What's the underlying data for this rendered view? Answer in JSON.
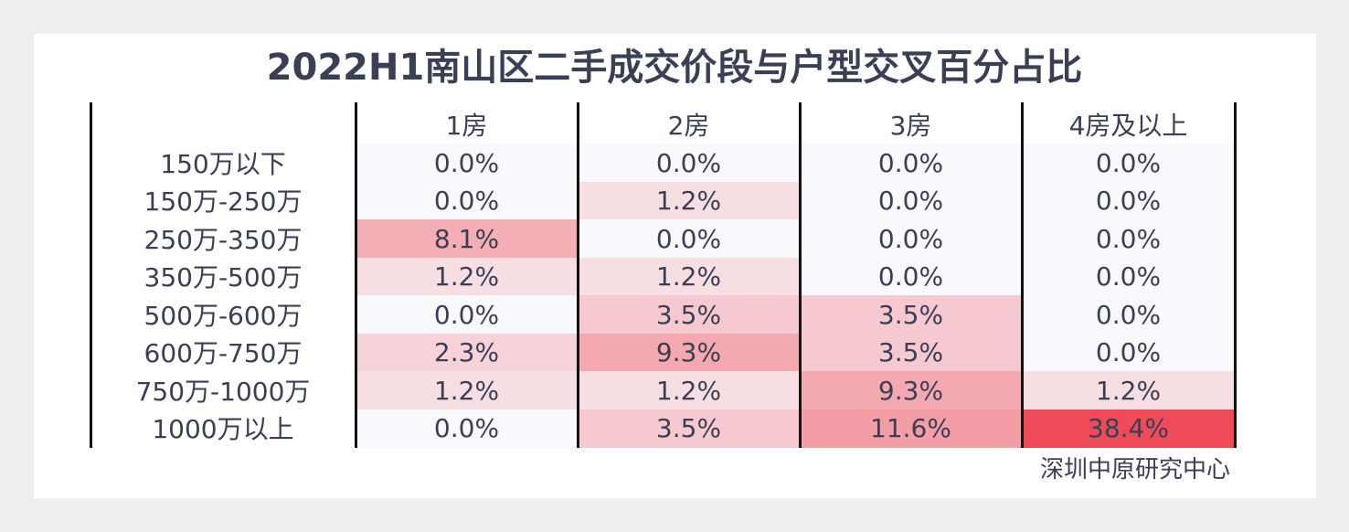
{
  "header": {
    "title": "2022H1南山区二手成交价段与户型交叉百分占比"
  },
  "table": {
    "columns": [
      "1房",
      "2房",
      "3房",
      "4房及以上"
    ],
    "row_labels": [
      "150万以下",
      "150万-250万",
      "250万-350万",
      "350万-500万",
      "500万-600万",
      "600万-750万",
      "750万-1000万",
      "1000万以上"
    ],
    "rows": [
      [
        "0.0%",
        "0.0%",
        "0.0%",
        "0.0%"
      ],
      [
        "0.0%",
        "1.2%",
        "0.0%",
        "0.0%"
      ],
      [
        "8.1%",
        "0.0%",
        "0.0%",
        "0.0%"
      ],
      [
        "1.2%",
        "1.2%",
        "0.0%",
        "0.0%"
      ],
      [
        "0.0%",
        "3.5%",
        "3.5%",
        "0.0%"
      ],
      [
        "2.3%",
        "9.3%",
        "3.5%",
        "0.0%"
      ],
      [
        "1.2%",
        "1.2%",
        "9.3%",
        "1.2%"
      ],
      [
        "0.0%",
        "3.5%",
        "11.6%",
        "38.4%"
      ]
    ]
  },
  "footer": {
    "source": "深圳中原研究中心"
  }
}
